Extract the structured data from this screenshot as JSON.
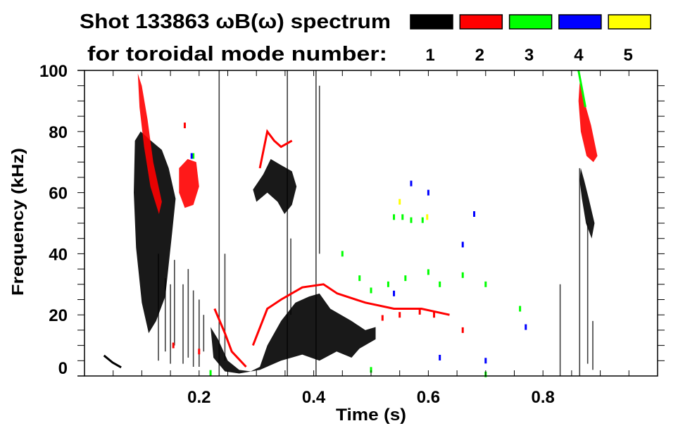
{
  "chart_data": {
    "type": "heatmap",
    "title": "Shot 133863 ωB(ω) spectrum",
    "subtitle": "for toroidal mode number:",
    "xlabel": "Time (s)",
    "ylabel": "Frequency (kHz)",
    "xlim": [
      0,
      1.0
    ],
    "ylim": [
      0,
      100
    ],
    "xticks": [
      0.2,
      0.4,
      0.6,
      0.8
    ],
    "xtick_labels": [
      "0.2",
      "0.4",
      "0.6",
      "0.8"
    ],
    "yticks": [
      0,
      20,
      40,
      60,
      80,
      100
    ],
    "ytick_labels": [
      "0",
      "20",
      "40",
      "60",
      "80",
      "100"
    ],
    "grid": false,
    "legend_placement": "top-right",
    "legend": [
      {
        "label": "1",
        "color": "#000000"
      },
      {
        "label": "2",
        "color": "#ff0000"
      },
      {
        "label": "3",
        "color": "#00ff00"
      },
      {
        "label": "4",
        "color": "#0000ff"
      },
      {
        "label": "5",
        "color": "#ffff00"
      }
    ],
    "blobs": [
      {
        "mode": 1,
        "points": [
          [
            0.088,
            77
          ],
          [
            0.098,
            80
          ],
          [
            0.116,
            77
          ],
          [
            0.135,
            74
          ],
          [
            0.147,
            68
          ],
          [
            0.159,
            58
          ],
          [
            0.153,
            47
          ],
          [
            0.141,
            26
          ],
          [
            0.125,
            18
          ],
          [
            0.112,
            14
          ],
          [
            0.1,
            24
          ],
          [
            0.09,
            42
          ],
          [
            0.086,
            60
          ]
        ]
      },
      {
        "mode": 1,
        "points": [
          [
            0.22,
            16
          ],
          [
            0.233,
            12
          ],
          [
            0.25,
            5
          ],
          [
            0.27,
            2
          ],
          [
            0.29,
            1.5
          ],
          [
            0.306,
            3
          ],
          [
            0.319,
            10
          ],
          [
            0.343,
            18
          ],
          [
            0.368,
            24
          ],
          [
            0.392,
            26
          ],
          [
            0.41,
            27
          ],
          [
            0.429,
            22
          ],
          [
            0.466,
            18
          ],
          [
            0.49,
            15
          ],
          [
            0.508,
            16
          ],
          [
            0.508,
            12
          ],
          [
            0.48,
            9
          ],
          [
            0.466,
            6
          ],
          [
            0.44,
            8
          ],
          [
            0.41,
            5
          ],
          [
            0.38,
            7
          ],
          [
            0.343,
            5
          ],
          [
            0.306,
            2
          ],
          [
            0.27,
            0.8
          ],
          [
            0.245,
            1.5
          ],
          [
            0.225,
            6
          ]
        ]
      },
      {
        "mode": 1,
        "points": [
          [
            0.294,
            61
          ],
          [
            0.312,
            66
          ],
          [
            0.325,
            71
          ],
          [
            0.343,
            69
          ],
          [
            0.362,
            67
          ],
          [
            0.37,
            62
          ],
          [
            0.362,
            56
          ],
          [
            0.349,
            53
          ],
          [
            0.337,
            57
          ],
          [
            0.319,
            60
          ],
          [
            0.3,
            57
          ]
        ]
      },
      {
        "mode": 1,
        "points": [
          [
            0.866,
            68
          ],
          [
            0.872,
            64
          ],
          [
            0.88,
            58
          ],
          [
            0.89,
            50
          ],
          [
            0.885,
            45
          ],
          [
            0.875,
            50
          ],
          [
            0.868,
            58
          ],
          [
            0.864,
            64
          ]
        ]
      },
      {
        "mode": 2,
        "points": [
          [
            0.093,
            99
          ],
          [
            0.1,
            95
          ],
          [
            0.11,
            84
          ],
          [
            0.12,
            70
          ],
          [
            0.135,
            57
          ],
          [
            0.13,
            53
          ],
          [
            0.115,
            62
          ],
          [
            0.104,
            75
          ],
          [
            0.096,
            88
          ]
        ]
      },
      {
        "mode": 2,
        "points": [
          [
            0.165,
            68
          ],
          [
            0.18,
            71
          ],
          [
            0.195,
            70
          ],
          [
            0.2,
            62
          ],
          [
            0.19,
            56
          ],
          [
            0.175,
            55
          ],
          [
            0.165,
            60
          ]
        ]
      },
      {
        "mode": 2,
        "points": [
          [
            0.864,
            96
          ],
          [
            0.872,
            90
          ],
          [
            0.884,
            82
          ],
          [
            0.895,
            72
          ],
          [
            0.888,
            70
          ],
          [
            0.876,
            72
          ],
          [
            0.866,
            80
          ],
          [
            0.862,
            90
          ]
        ]
      }
    ],
    "streaks": [
      {
        "mode": 1,
        "t": 0.129,
        "f": [
          5,
          40
        ]
      },
      {
        "mode": 1,
        "t": 0.141,
        "f": [
          8,
          32
        ]
      },
      {
        "mode": 1,
        "t": 0.15,
        "f": [
          4,
          30
        ]
      },
      {
        "mode": 1,
        "t": 0.157,
        "f": [
          10,
          38
        ]
      },
      {
        "mode": 1,
        "t": 0.172,
        "f": [
          4,
          30
        ]
      },
      {
        "mode": 1,
        "t": 0.181,
        "f": [
          6,
          35
        ]
      },
      {
        "mode": 1,
        "t": 0.19,
        "f": [
          3,
          28
        ]
      },
      {
        "mode": 1,
        "t": 0.2,
        "f": [
          3,
          25
        ]
      },
      {
        "mode": 1,
        "t": 0.208,
        "f": [
          8,
          20
        ]
      },
      {
        "mode": 1,
        "t": 0.235,
        "f": [
          0,
          100
        ]
      },
      {
        "mode": 1,
        "t": 0.245,
        "f": [
          5,
          40
        ]
      },
      {
        "mode": 1,
        "t": 0.354,
        "f": [
          0,
          100
        ]
      },
      {
        "mode": 1,
        "t": 0.36,
        "f": [
          20,
          45
        ]
      },
      {
        "mode": 1,
        "t": 0.404,
        "f": [
          0,
          100
        ]
      },
      {
        "mode": 1,
        "t": 0.41,
        "f": [
          40,
          95
        ]
      },
      {
        "mode": 1,
        "t": 0.83,
        "f": [
          0,
          30
        ]
      },
      {
        "mode": 1,
        "t": 0.864,
        "f": [
          0,
          68
        ]
      },
      {
        "mode": 1,
        "t": 0.878,
        "f": [
          4,
          50
        ]
      },
      {
        "mode": 1,
        "t": 0.887,
        "f": [
          2,
          18
        ]
      }
    ],
    "traces": [
      {
        "mode": 1,
        "points": [
          [
            0.034,
            6.7
          ],
          [
            0.049,
            4.4
          ],
          [
            0.064,
            2.8
          ]
        ]
      },
      {
        "mode": 2,
        "points": [
          [
            0.306,
            68
          ],
          [
            0.319,
            80
          ],
          [
            0.331,
            77
          ],
          [
            0.343,
            75
          ],
          [
            0.362,
            77
          ]
        ]
      },
      {
        "mode": 2,
        "points": [
          [
            0.227,
            22
          ],
          [
            0.245,
            14
          ],
          [
            0.257,
            8
          ],
          [
            0.282,
            3
          ]
        ]
      },
      {
        "mode": 2,
        "points": [
          [
            0.294,
            10
          ],
          [
            0.319,
            22
          ],
          [
            0.343,
            25
          ],
          [
            0.38,
            29
          ],
          [
            0.417,
            30
          ],
          [
            0.441,
            27
          ],
          [
            0.49,
            24
          ],
          [
            0.54,
            22
          ],
          [
            0.588,
            22
          ],
          [
            0.637,
            20
          ]
        ]
      },
      {
        "mode": 3,
        "points": [
          [
            0.862,
            100
          ],
          [
            0.868,
            94
          ],
          [
            0.874,
            88
          ]
        ]
      }
    ],
    "specks": [
      {
        "mode": 2,
        "t": 0.52,
        "f": 19
      },
      {
        "mode": 2,
        "t": 0.55,
        "f": 20
      },
      {
        "mode": 2,
        "t": 0.585,
        "f": 21
      },
      {
        "mode": 2,
        "t": 0.61,
        "f": 20
      },
      {
        "mode": 2,
        "t": 0.66,
        "f": 15
      },
      {
        "mode": 2,
        "t": 0.155,
        "f": 10
      },
      {
        "mode": 2,
        "t": 0.2,
        "f": 8
      },
      {
        "mode": 2,
        "t": 0.175,
        "f": 82
      },
      {
        "mode": 3,
        "t": 0.54,
        "f": 52
      },
      {
        "mode": 3,
        "t": 0.555,
        "f": 52
      },
      {
        "mode": 3,
        "t": 0.57,
        "f": 51
      },
      {
        "mode": 3,
        "t": 0.59,
        "f": 51
      },
      {
        "mode": 3,
        "t": 0.45,
        "f": 40
      },
      {
        "mode": 3,
        "t": 0.48,
        "f": 32
      },
      {
        "mode": 3,
        "t": 0.5,
        "f": 28
      },
      {
        "mode": 3,
        "t": 0.53,
        "f": 30
      },
      {
        "mode": 3,
        "t": 0.56,
        "f": 32
      },
      {
        "mode": 3,
        "t": 0.6,
        "f": 34
      },
      {
        "mode": 3,
        "t": 0.62,
        "f": 30
      },
      {
        "mode": 3,
        "t": 0.66,
        "f": 33
      },
      {
        "mode": 3,
        "t": 0.7,
        "f": 30
      },
      {
        "mode": 3,
        "t": 0.76,
        "f": 22
      },
      {
        "mode": 3,
        "t": 0.5,
        "f": 2
      },
      {
        "mode": 3,
        "t": 0.22,
        "f": 1
      },
      {
        "mode": 3,
        "t": 0.19,
        "f": 72
      },
      {
        "mode": 3,
        "t": 0.7,
        "f": 0.5
      },
      {
        "mode": 4,
        "t": 0.57,
        "f": 63
      },
      {
        "mode": 4,
        "t": 0.6,
        "f": 60
      },
      {
        "mode": 4,
        "t": 0.68,
        "f": 53
      },
      {
        "mode": 4,
        "t": 0.66,
        "f": 43
      },
      {
        "mode": 4,
        "t": 0.54,
        "f": 27
      },
      {
        "mode": 4,
        "t": 0.62,
        "f": 6
      },
      {
        "mode": 4,
        "t": 0.7,
        "f": 5
      },
      {
        "mode": 4,
        "t": 0.187,
        "f": 72
      },
      {
        "mode": 4,
        "t": 0.77,
        "f": 16
      },
      {
        "mode": 5,
        "t": 0.55,
        "f": 57
      },
      {
        "mode": 5,
        "t": 0.598,
        "f": 52
      }
    ]
  }
}
